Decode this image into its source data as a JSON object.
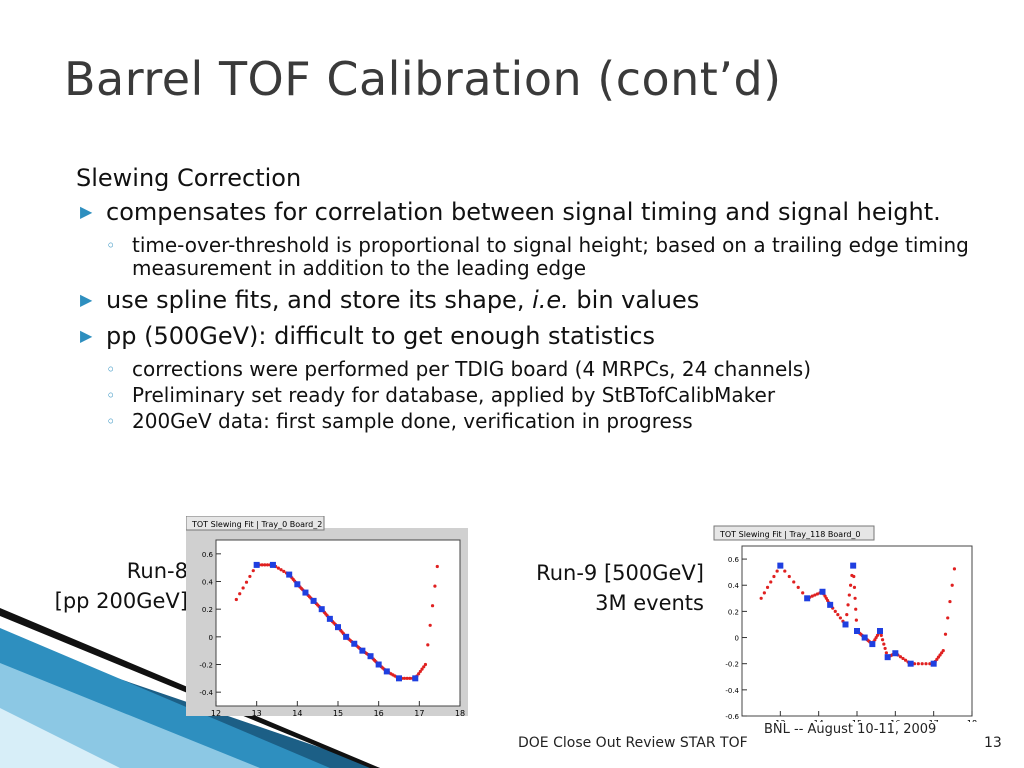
{
  "slide": {
    "title": "Barrel TOF Calibration (cont’d)",
    "heading": "Slewing Correction",
    "bullet1": "compensates for correlation between signal timing and signal height.",
    "sub1": "time-over-threshold is proportional to signal height; based on a trailing edge timing measurement in addition to the leading edge",
    "bullet2_pre": "use spline fits, and store its shape, ",
    "bullet2_em": "i.e.",
    "bullet2_post": " bin values",
    "bullet3": "pp (500GeV): difficult to get enough statistics",
    "sub3a": "corrections were performed per TDIG board (4 MRPCs, 24 channels)",
    "sub3b": "Preliminary set ready for database, applied by StBTofCalibMaker",
    "sub3c": "200GeV data: first sample done, verification in progress",
    "label_left_1": "Run-8",
    "label_left_2": "[pp 200GeV]",
    "label_right_1": "Run-9 [500GeV]",
    "label_right_2": "3M events",
    "footer_left": "BNL -- August 10-11, 2009",
    "footer_center": "DOE Close Out Review STAR TOF",
    "page_number": "13",
    "accent_color": "#2e8fbf"
  },
  "chart_data": [
    {
      "type": "scatter",
      "title": "TOT Slewing Fit | Tray_0 Board_2",
      "xlim": [
        12,
        18
      ],
      "ylim": [
        -0.5,
        0.7
      ],
      "xticks": [
        "12",
        "13",
        "14",
        "15",
        "16",
        "17",
        "18"
      ],
      "yticks": [
        "-0.4",
        "-0.2",
        "0",
        "0.2",
        "0.4",
        "0.6"
      ],
      "series": [
        {
          "values_x": [
            13.0,
            13.4,
            13.8,
            14.0,
            14.2,
            14.4,
            14.6,
            14.8,
            15.0,
            15.2,
            15.4,
            15.6,
            15.8,
            16.0,
            16.2,
            16.5,
            16.9
          ],
          "values_y": [
            0.52,
            0.52,
            0.45,
            0.38,
            0.32,
            0.26,
            0.2,
            0.13,
            0.07,
            0.0,
            -0.05,
            -0.1,
            -0.14,
            -0.2,
            -0.25,
            -0.3,
            -0.3
          ]
        }
      ]
    },
    {
      "type": "scatter",
      "title": "TOT Slewing Fit | Tray_118 Board_0",
      "xlim": [
        12,
        18
      ],
      "ylim": [
        -0.6,
        0.7
      ],
      "xticks": [
        "13",
        "14",
        "15",
        "16",
        "17",
        "18"
      ],
      "yticks": [
        "-0.6",
        "-0.4",
        "-0.2",
        "0",
        "0.2",
        "0.4",
        "0.6"
      ],
      "series": [
        {
          "values_x": [
            13.0,
            13.7,
            14.1,
            14.3,
            14.7,
            14.9,
            15.0,
            15.2,
            15.4,
            15.6,
            15.8,
            16.0,
            16.4,
            17.0
          ],
          "values_y": [
            0.55,
            0.3,
            0.35,
            0.25,
            0.1,
            0.55,
            0.05,
            0.0,
            -0.05,
            0.05,
            -0.15,
            -0.12,
            -0.2,
            -0.2
          ]
        }
      ]
    }
  ]
}
